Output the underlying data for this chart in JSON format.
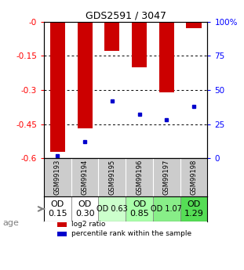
{
  "title": "GDS2591 / 3047",
  "samples": [
    "GSM99193",
    "GSM99194",
    "GSM99195",
    "GSM99196",
    "GSM99197",
    "GSM99198"
  ],
  "log2_ratio": [
    -0.57,
    -0.47,
    -0.13,
    -0.2,
    -0.31,
    -0.03
  ],
  "percentile_rank": [
    0.02,
    0.12,
    0.42,
    0.32,
    0.28,
    0.38
  ],
  "od_values": [
    "OD\n0.15",
    "OD\n0.30",
    "OD 0.63",
    "OD\n0.85",
    "OD 1.07",
    "OD\n1.29"
  ],
  "od_bg_colors": [
    "#ffffff",
    "#ffffff",
    "#ccffcc",
    "#aaffaa",
    "#88ee88",
    "#55dd55"
  ],
  "od_fontsize": [
    8,
    8,
    7,
    8,
    7,
    8
  ],
  "ylim_left": [
    -0.6,
    0.0
  ],
  "ylim_right": [
    0,
    100
  ],
  "yticks_left": [
    0.0,
    -0.15,
    -0.3,
    -0.45,
    -0.6
  ],
  "ytick_labels_left": [
    "-0",
    "-0.15",
    "-0.3",
    "-0.45",
    "-0.6"
  ],
  "yticks_right": [
    100,
    75,
    50,
    25,
    0
  ],
  "ytick_labels_right": [
    "100%",
    "75",
    "50",
    "25",
    "0"
  ],
  "bar_color": "#cc0000",
  "dot_color": "#0000cc",
  "bar_width": 0.55,
  "sample_bg_color": "#cccccc",
  "background_color": "#ffffff",
  "fig_width": 3.11,
  "fig_height": 3.45
}
